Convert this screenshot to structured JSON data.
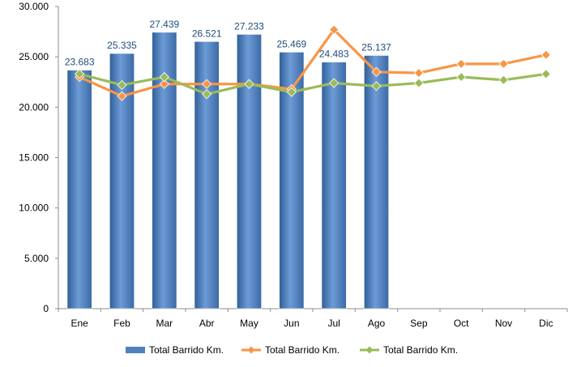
{
  "chart_data": {
    "type": "bar",
    "categories": [
      "Ene",
      "Feb",
      "Mar",
      "Abr",
      "May",
      "Jun",
      "Jul",
      "Ago",
      "Sep",
      "Oct",
      "Nov",
      "Dic"
    ],
    "y_ticks": [
      "0",
      "5.000",
      "10.000",
      "15.000",
      "20.000",
      "25.000",
      "30.000"
    ],
    "ylim": [
      0,
      30000
    ],
    "grid": false,
    "legend_position": "bottom",
    "bar_series": {
      "name": "Total Barrido Km.",
      "type": "bar",
      "color": "#4f81bd",
      "values": [
        23683,
        25335,
        27439,
        26521,
        27233,
        25469,
        24483,
        25137
      ],
      "data_labels": [
        "23.683",
        "25.335",
        "27.439",
        "26.521",
        "27.233",
        "25.469",
        "24.483",
        "25.137"
      ]
    },
    "line_series": [
      {
        "name": "Total Barrido Km.",
        "type": "line",
        "color": "#f79646",
        "values": [
          23000,
          21100,
          22300,
          22300,
          22300,
          21800,
          27700,
          23500,
          23400,
          24300,
          24300,
          25200
        ]
      },
      {
        "name": "Total Barrido Km.",
        "type": "line",
        "color": "#9bbb59",
        "values": [
          23300,
          22200,
          23000,
          21300,
          22300,
          21500,
          22400,
          22100,
          22400,
          23000,
          22700,
          23300
        ]
      }
    ]
  }
}
